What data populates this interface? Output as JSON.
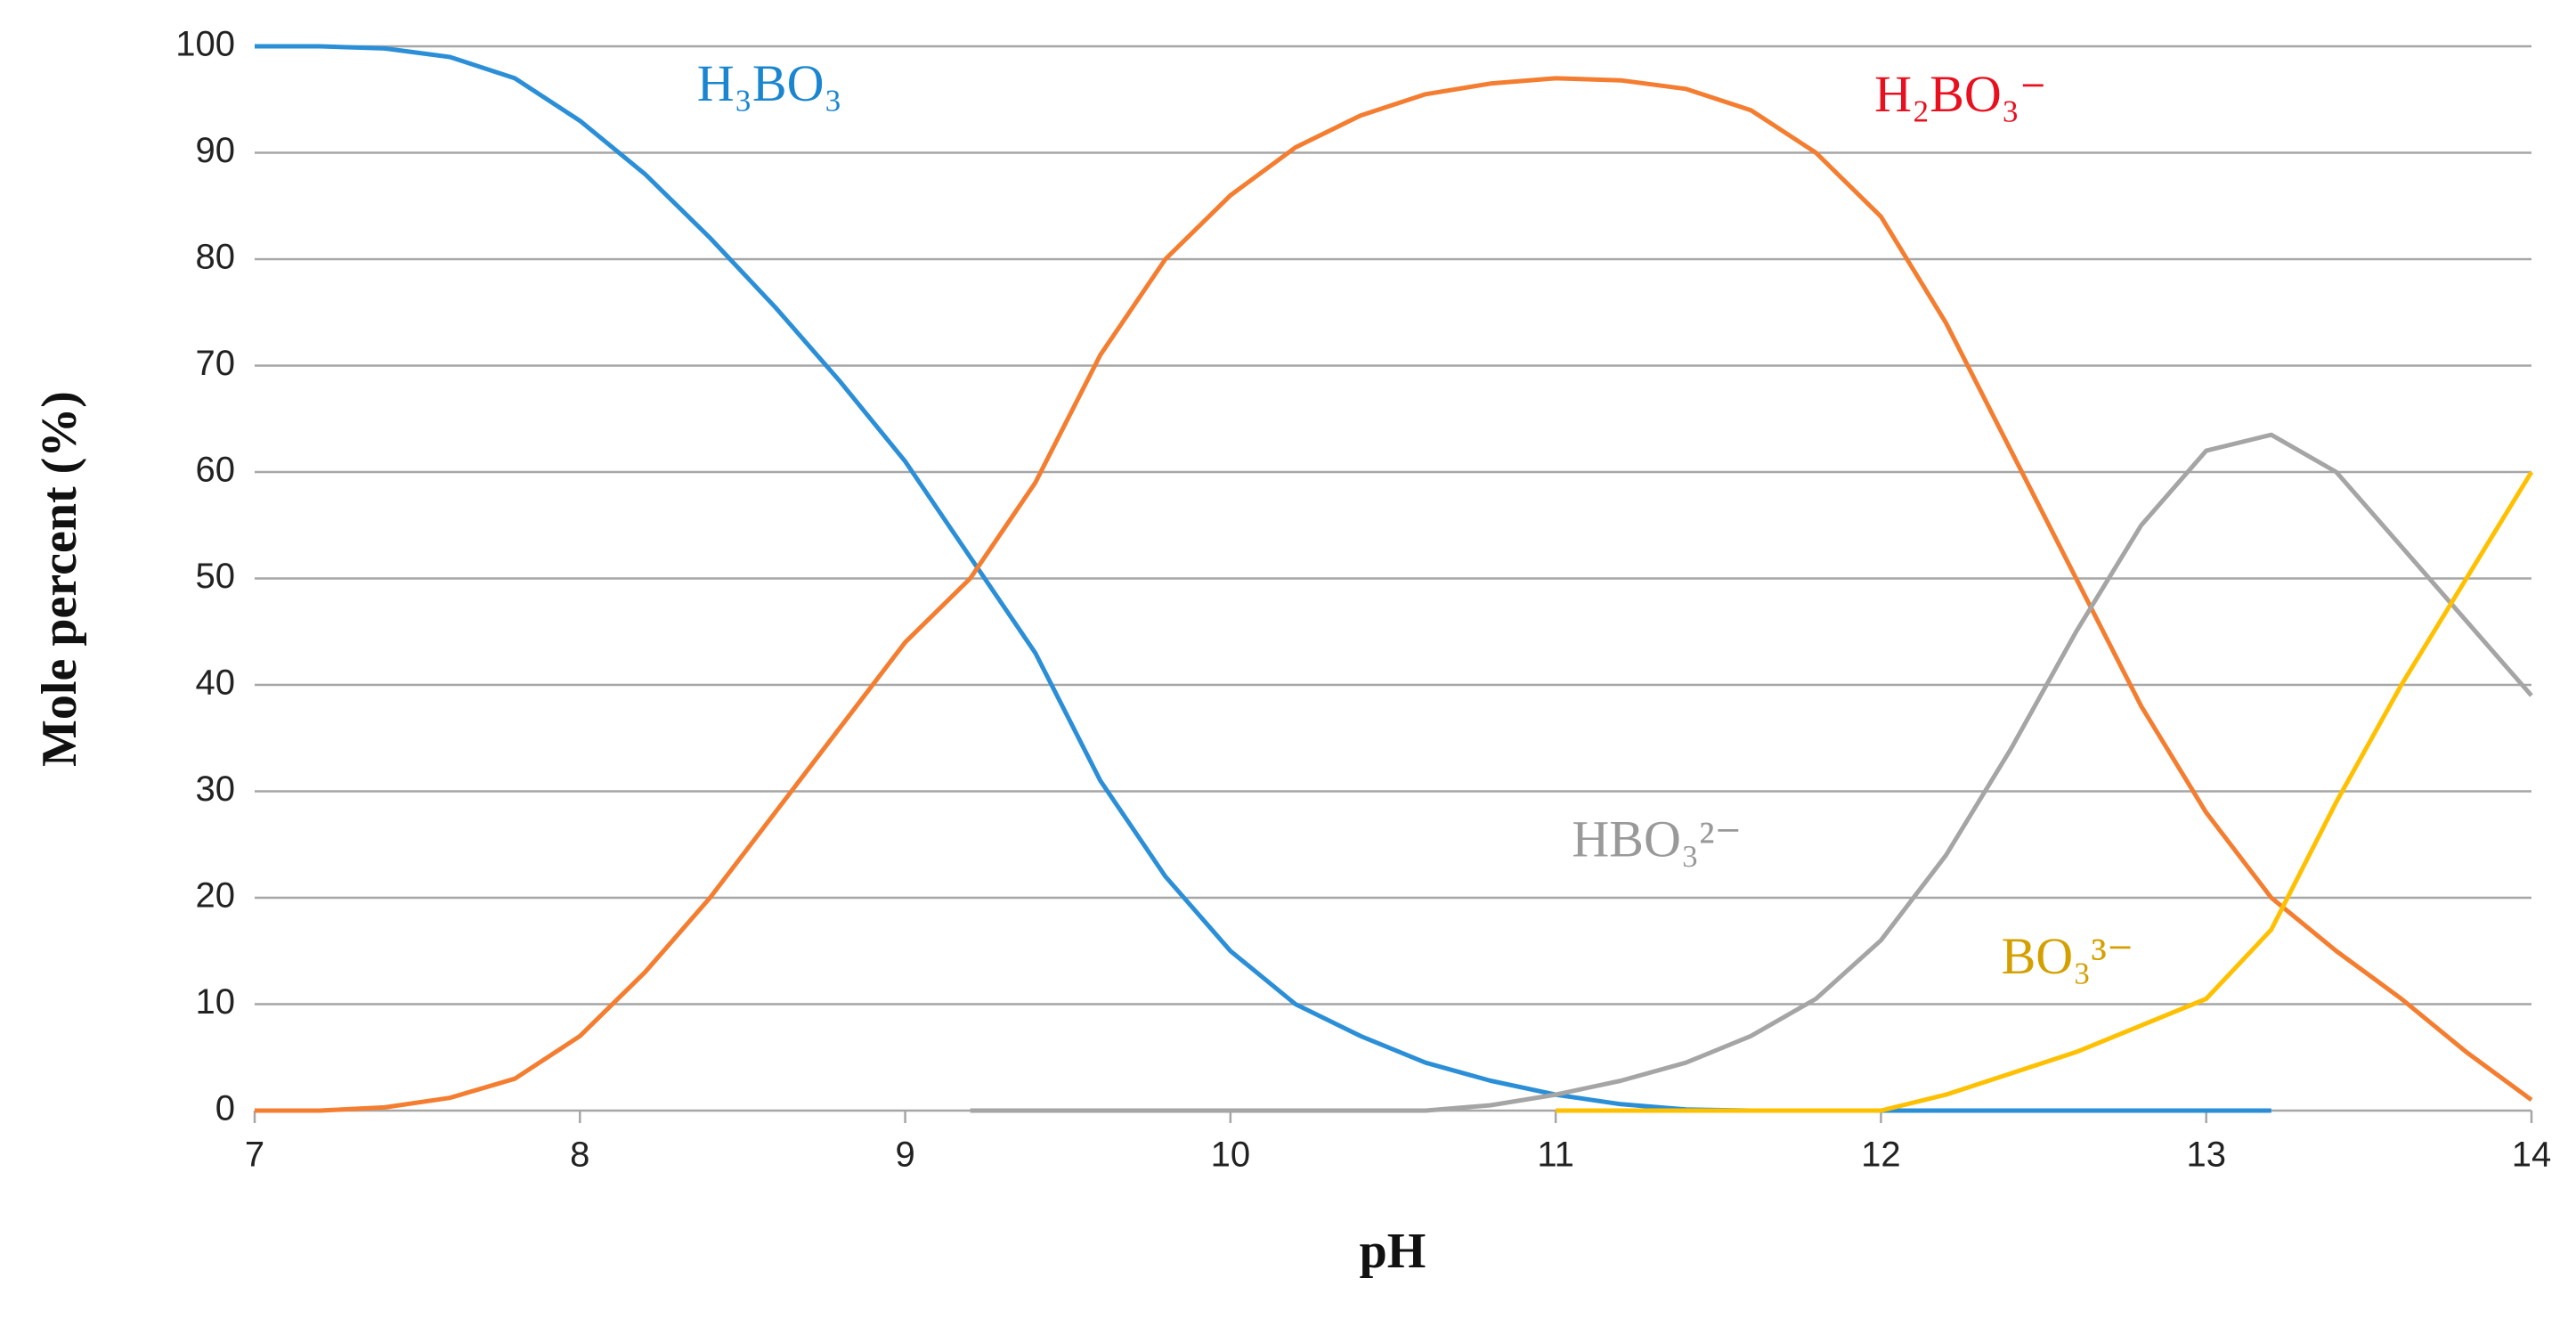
{
  "chart_data": {
    "type": "line",
    "xlabel": "pH",
    "ylabel": "Mole percent (%)",
    "x": [
      7,
      7.2,
      7.4,
      7.6,
      7.8,
      8,
      8.2,
      8.4,
      8.6,
      8.8,
      9,
      9.2,
      9.4,
      9.6,
      9.8,
      10,
      10.2,
      10.4,
      10.6,
      10.8,
      11,
      11.2,
      11.4,
      11.6,
      11.8,
      12,
      12.2,
      12.4,
      12.6,
      12.8,
      13,
      13.2,
      13.4,
      13.6,
      13.8,
      14
    ],
    "series": [
      {
        "name": "H₃BO₃",
        "color": "#2b8fd8",
        "label_color": "#1a86d0",
        "values": [
          100,
          100,
          99.8,
          99,
          97,
          93,
          88,
          82,
          75.5,
          68.5,
          61,
          52,
          43,
          31,
          22,
          15,
          10,
          7,
          4.5,
          2.8,
          1.5,
          0.6,
          0.1,
          0,
          0,
          0,
          0,
          0,
          0,
          0,
          0,
          0,
          null,
          null,
          null,
          null
        ]
      },
      {
        "name": "H₂BO₃⁻",
        "color": "#f47d30",
        "label_color": "#e8101e",
        "values": [
          0,
          0,
          0.3,
          1.2,
          3,
          7,
          13,
          20,
          28,
          36,
          44,
          50,
          59,
          71,
          80,
          86,
          90.5,
          93.5,
          95.5,
          96.5,
          97,
          96.8,
          96,
          94,
          90,
          84,
          74,
          62,
          50,
          38,
          28,
          20,
          15,
          10.5,
          5.5,
          1
        ]
      },
      {
        "name": "HBO₃²⁻",
        "color": "#a5a5a5",
        "label_color": "#999999",
        "values": [
          null,
          null,
          null,
          null,
          null,
          null,
          null,
          null,
          null,
          null,
          null,
          0,
          0,
          0,
          0,
          0,
          0,
          0,
          0,
          0.5,
          1.5,
          2.8,
          4.5,
          7,
          10.5,
          16,
          24,
          34,
          45,
          55,
          62,
          63.5,
          60,
          53,
          46,
          39
        ]
      },
      {
        "name": "BO₃³⁻",
        "color": "#ffc000",
        "label_color": "#d4a000",
        "values": [
          null,
          null,
          null,
          null,
          null,
          null,
          null,
          null,
          null,
          null,
          null,
          null,
          null,
          null,
          null,
          null,
          null,
          null,
          null,
          null,
          0,
          0,
          0,
          0,
          0,
          0,
          1.5,
          3.5,
          5.5,
          8,
          10.5,
          17,
          29,
          40,
          50,
          60
        ]
      }
    ],
    "xlim": [
      7,
      14
    ],
    "xticks": [
      7,
      8,
      9,
      10,
      11,
      12,
      13,
      14
    ],
    "ylim": [
      0,
      100
    ],
    "yticks": [
      0,
      10,
      20,
      30,
      40,
      50,
      60,
      70,
      80,
      90,
      100
    ],
    "grid": true
  }
}
